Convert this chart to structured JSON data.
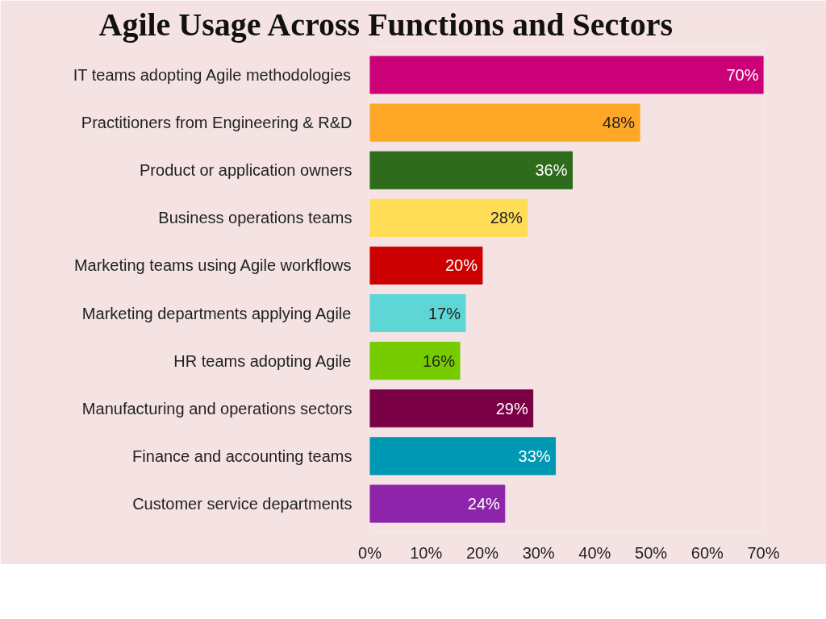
{
  "chart_data": {
    "type": "bar",
    "orientation": "horizontal",
    "title": "Agile Usage Across Functions and Sectors",
    "categories": [
      "IT teams adopting Agile methodologies",
      "Practitioners from Engineering & R&D",
      "Product or application owners",
      "Business operations teams",
      "Marketing teams using Agile workflows",
      "Marketing departments applying Agile",
      "HR teams adopting Agile",
      "Manufacturing and operations sectors",
      "Finance and accounting teams",
      "Customer service departments"
    ],
    "values": [
      70,
      48,
      36,
      28,
      20,
      17,
      16,
      29,
      33,
      24
    ],
    "value_labels": [
      "70%",
      "48%",
      "36%",
      "28%",
      "20%",
      "17%",
      "16%",
      "29%",
      "33%",
      "24%"
    ],
    "colors": [
      "#cc0077",
      "#ffa726",
      "#2e6b1a",
      "#ffdd57",
      "#cc0000",
      "#5ed6d6",
      "#77cc00",
      "#7a0045",
      "#0099b3",
      "#8e24aa"
    ],
    "xlim": [
      0,
      70
    ],
    "xticks": [
      {
        "value": 0,
        "label": "0%"
      },
      {
        "value": 10,
        "label": "10%"
      },
      {
        "value": 20,
        "label": "20%"
      },
      {
        "value": 30,
        "label": "30%"
      },
      {
        "value": 40,
        "label": "40%"
      },
      {
        "value": 50,
        "label": "50%"
      },
      {
        "value": 60,
        "label": "60%"
      },
      {
        "value": 70,
        "label": "70%"
      }
    ],
    "grid": false
  }
}
